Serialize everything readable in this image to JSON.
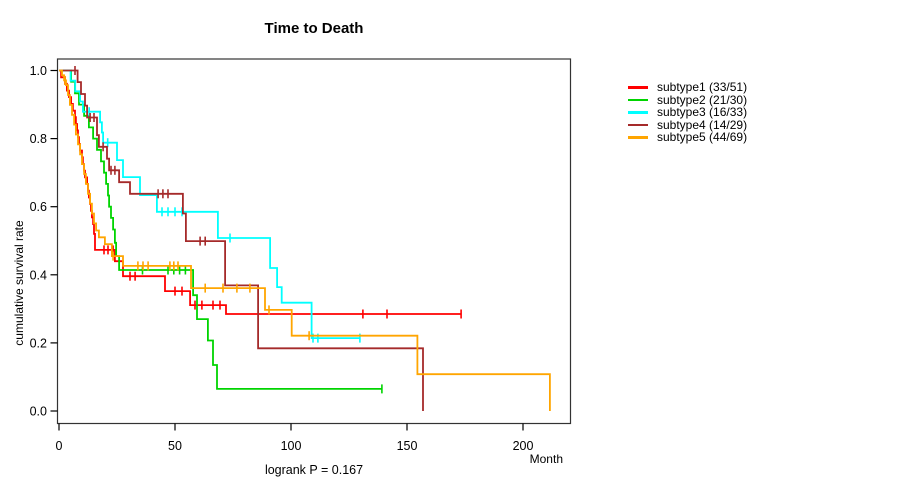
{
  "title": "Time to Death",
  "annotation": "logrank P = 0.167",
  "chart_data": {
    "type": "line",
    "variant": "kaplan-meier-step",
    "title": "Time to Death",
    "xlabel": "Month",
    "ylabel": "cumulative survival rate",
    "x_ticks": [
      0,
      50,
      100,
      150,
      200
    ],
    "y_ticks": [
      "0.0",
      "0.2",
      "0.4",
      "0.6",
      "0.8",
      "1.0"
    ],
    "xlim": [
      0,
      220
    ],
    "ylim": [
      0,
      1
    ],
    "grid": false,
    "legend_position": "right-outside",
    "frame_color": "#333333",
    "tick_color": "#000000",
    "series": [
      {
        "name": "subtype1",
        "label": "subtype1 (33/51)",
        "events": "33/51",
        "color": "#ff0000",
        "end_month": 173.3,
        "steps": [
          [
            0,
            1
          ],
          [
            0.9,
            0.98
          ],
          [
            2.6,
            0.961
          ],
          [
            3.4,
            0.941
          ],
          [
            4.3,
            0.922
          ],
          [
            5.2,
            0.902
          ],
          [
            6,
            0.882
          ],
          [
            6.9,
            0.863
          ],
          [
            7.3,
            0.843
          ],
          [
            7.8,
            0.824
          ],
          [
            8.2,
            0.804
          ],
          [
            8.6,
            0.784
          ],
          [
            9.1,
            0.765
          ],
          [
            9.9,
            0.745
          ],
          [
            10.3,
            0.725
          ],
          [
            10.8,
            0.706
          ],
          [
            11.2,
            0.686
          ],
          [
            12.1,
            0.667
          ],
          [
            12.5,
            0.647
          ],
          [
            12.9,
            0.627
          ],
          [
            13.4,
            0.608
          ],
          [
            13.8,
            0.588
          ],
          [
            14.2,
            0.569
          ],
          [
            14.7,
            0.549
          ],
          [
            15.1,
            0.52
          ],
          [
            15.5,
            0.473
          ],
          [
            24.1,
            0.44
          ],
          [
            27.6,
            0.396
          ],
          [
            45.7,
            0.352
          ],
          [
            56.5,
            0.311
          ],
          [
            72,
            0.285
          ]
        ],
        "censor_ticks": [
          19.4,
          21.1,
          23.3,
          30.6,
          32.8,
          50,
          53,
          58.6,
          61.6,
          66.4,
          69.4,
          131,
          141.4,
          173.3
        ]
      },
      {
        "name": "subtype2",
        "label": "subtype2 (21/30)",
        "events": "21/30",
        "color": "#00d400",
        "end_month": 139.2,
        "steps": [
          [
            0,
            1
          ],
          [
            5.2,
            0.967
          ],
          [
            6.9,
            0.933
          ],
          [
            8.6,
            0.9
          ],
          [
            10.8,
            0.867
          ],
          [
            12.9,
            0.833
          ],
          [
            14.7,
            0.8
          ],
          [
            16.4,
            0.767
          ],
          [
            18.1,
            0.733
          ],
          [
            19.4,
            0.7
          ],
          [
            20.3,
            0.667
          ],
          [
            21.1,
            0.633
          ],
          [
            21.6,
            0.6
          ],
          [
            22.4,
            0.567
          ],
          [
            23.3,
            0.533
          ],
          [
            24.1,
            0.494
          ],
          [
            24.6,
            0.455
          ],
          [
            25.9,
            0.414
          ],
          [
            57.8,
            0.34
          ],
          [
            59.5,
            0.27
          ],
          [
            64.2,
            0.207
          ],
          [
            66.4,
            0.135
          ],
          [
            68.1,
            0.065
          ]
        ],
        "censor_ticks": [
          36,
          47,
          49.5,
          52,
          54.5,
          139.2
        ]
      },
      {
        "name": "subtype3",
        "label": "subtype3 (16/33)",
        "events": "16/33",
        "color": "#00ffff",
        "end_month": 129.7,
        "steps": [
          [
            0,
            1
          ],
          [
            5,
            0.97
          ],
          [
            7,
            0.939
          ],
          [
            9.1,
            0.909
          ],
          [
            10.3,
            0.879
          ],
          [
            17.7,
            0.848
          ],
          [
            18.5,
            0.818
          ],
          [
            19,
            0.788
          ],
          [
            25,
            0.737
          ],
          [
            27.6,
            0.687
          ],
          [
            34.9,
            0.634
          ],
          [
            42.2,
            0.585
          ],
          [
            68.5,
            0.508
          ],
          [
            91,
            0.42
          ],
          [
            94,
            0.364
          ],
          [
            96,
            0.318
          ],
          [
            108.9,
            0.214
          ]
        ],
        "censor_ticks": [
          13,
          21,
          44.4,
          47,
          50,
          53,
          73.7,
          109.5,
          111.6,
          129.7
        ]
      },
      {
        "name": "subtype4",
        "label": "subtype4 (14/29)",
        "events": "14/29",
        "color": "#a52a2a",
        "end_month": 156.9,
        "steps": [
          [
            0,
            1
          ],
          [
            8,
            0.966
          ],
          [
            9.5,
            0.931
          ],
          [
            11.2,
            0.897
          ],
          [
            12.1,
            0.862
          ],
          [
            16.4,
            0.81
          ],
          [
            17.2,
            0.776
          ],
          [
            20.7,
            0.741
          ],
          [
            21.6,
            0.707
          ],
          [
            25.9,
            0.672
          ],
          [
            30.6,
            0.638
          ],
          [
            53.4,
            0.58
          ],
          [
            54.7,
            0.499
          ],
          [
            71.6,
            0.369
          ],
          [
            85.8,
            0.184
          ],
          [
            156.9,
            0
          ]
        ],
        "censor_ticks": [
          6.9,
          13.4,
          15.1,
          19,
          22.4,
          24.1,
          42.7,
          44.8,
          47,
          60.8,
          63
        ]
      },
      {
        "name": "subtype5",
        "label": "subtype5 (44/69)",
        "events": "44/69",
        "color": "#ffa500",
        "end_month": 211.6,
        "steps": [
          [
            0,
            1
          ],
          [
            1.3,
            0.986
          ],
          [
            2.2,
            0.971
          ],
          [
            3,
            0.957
          ],
          [
            3.9,
            0.928
          ],
          [
            4.7,
            0.899
          ],
          [
            5.6,
            0.87
          ],
          [
            6.5,
            0.841
          ],
          [
            7.3,
            0.812
          ],
          [
            8.2,
            0.783
          ],
          [
            9.1,
            0.754
          ],
          [
            9.9,
            0.725
          ],
          [
            10.8,
            0.696
          ],
          [
            11.6,
            0.667
          ],
          [
            12.5,
            0.638
          ],
          [
            13.4,
            0.609
          ],
          [
            14.2,
            0.58
          ],
          [
            15.1,
            0.551
          ],
          [
            16,
            0.53
          ],
          [
            17.2,
            0.51
          ],
          [
            19.8,
            0.49
          ],
          [
            22.8,
            0.455
          ],
          [
            27.6,
            0.426
          ],
          [
            56.9,
            0.361
          ],
          [
            88.8,
            0.297
          ],
          [
            100.3,
            0.221
          ],
          [
            154.5,
            0.108
          ],
          [
            211.6,
            0
          ]
        ],
        "censor_ticks": [
          2.6,
          23.3,
          34,
          36.2,
          38.4,
          47.8,
          49.5,
          51.3,
          63,
          70.7,
          76.7,
          82.3,
          90.5,
          107.8
        ]
      }
    ]
  }
}
